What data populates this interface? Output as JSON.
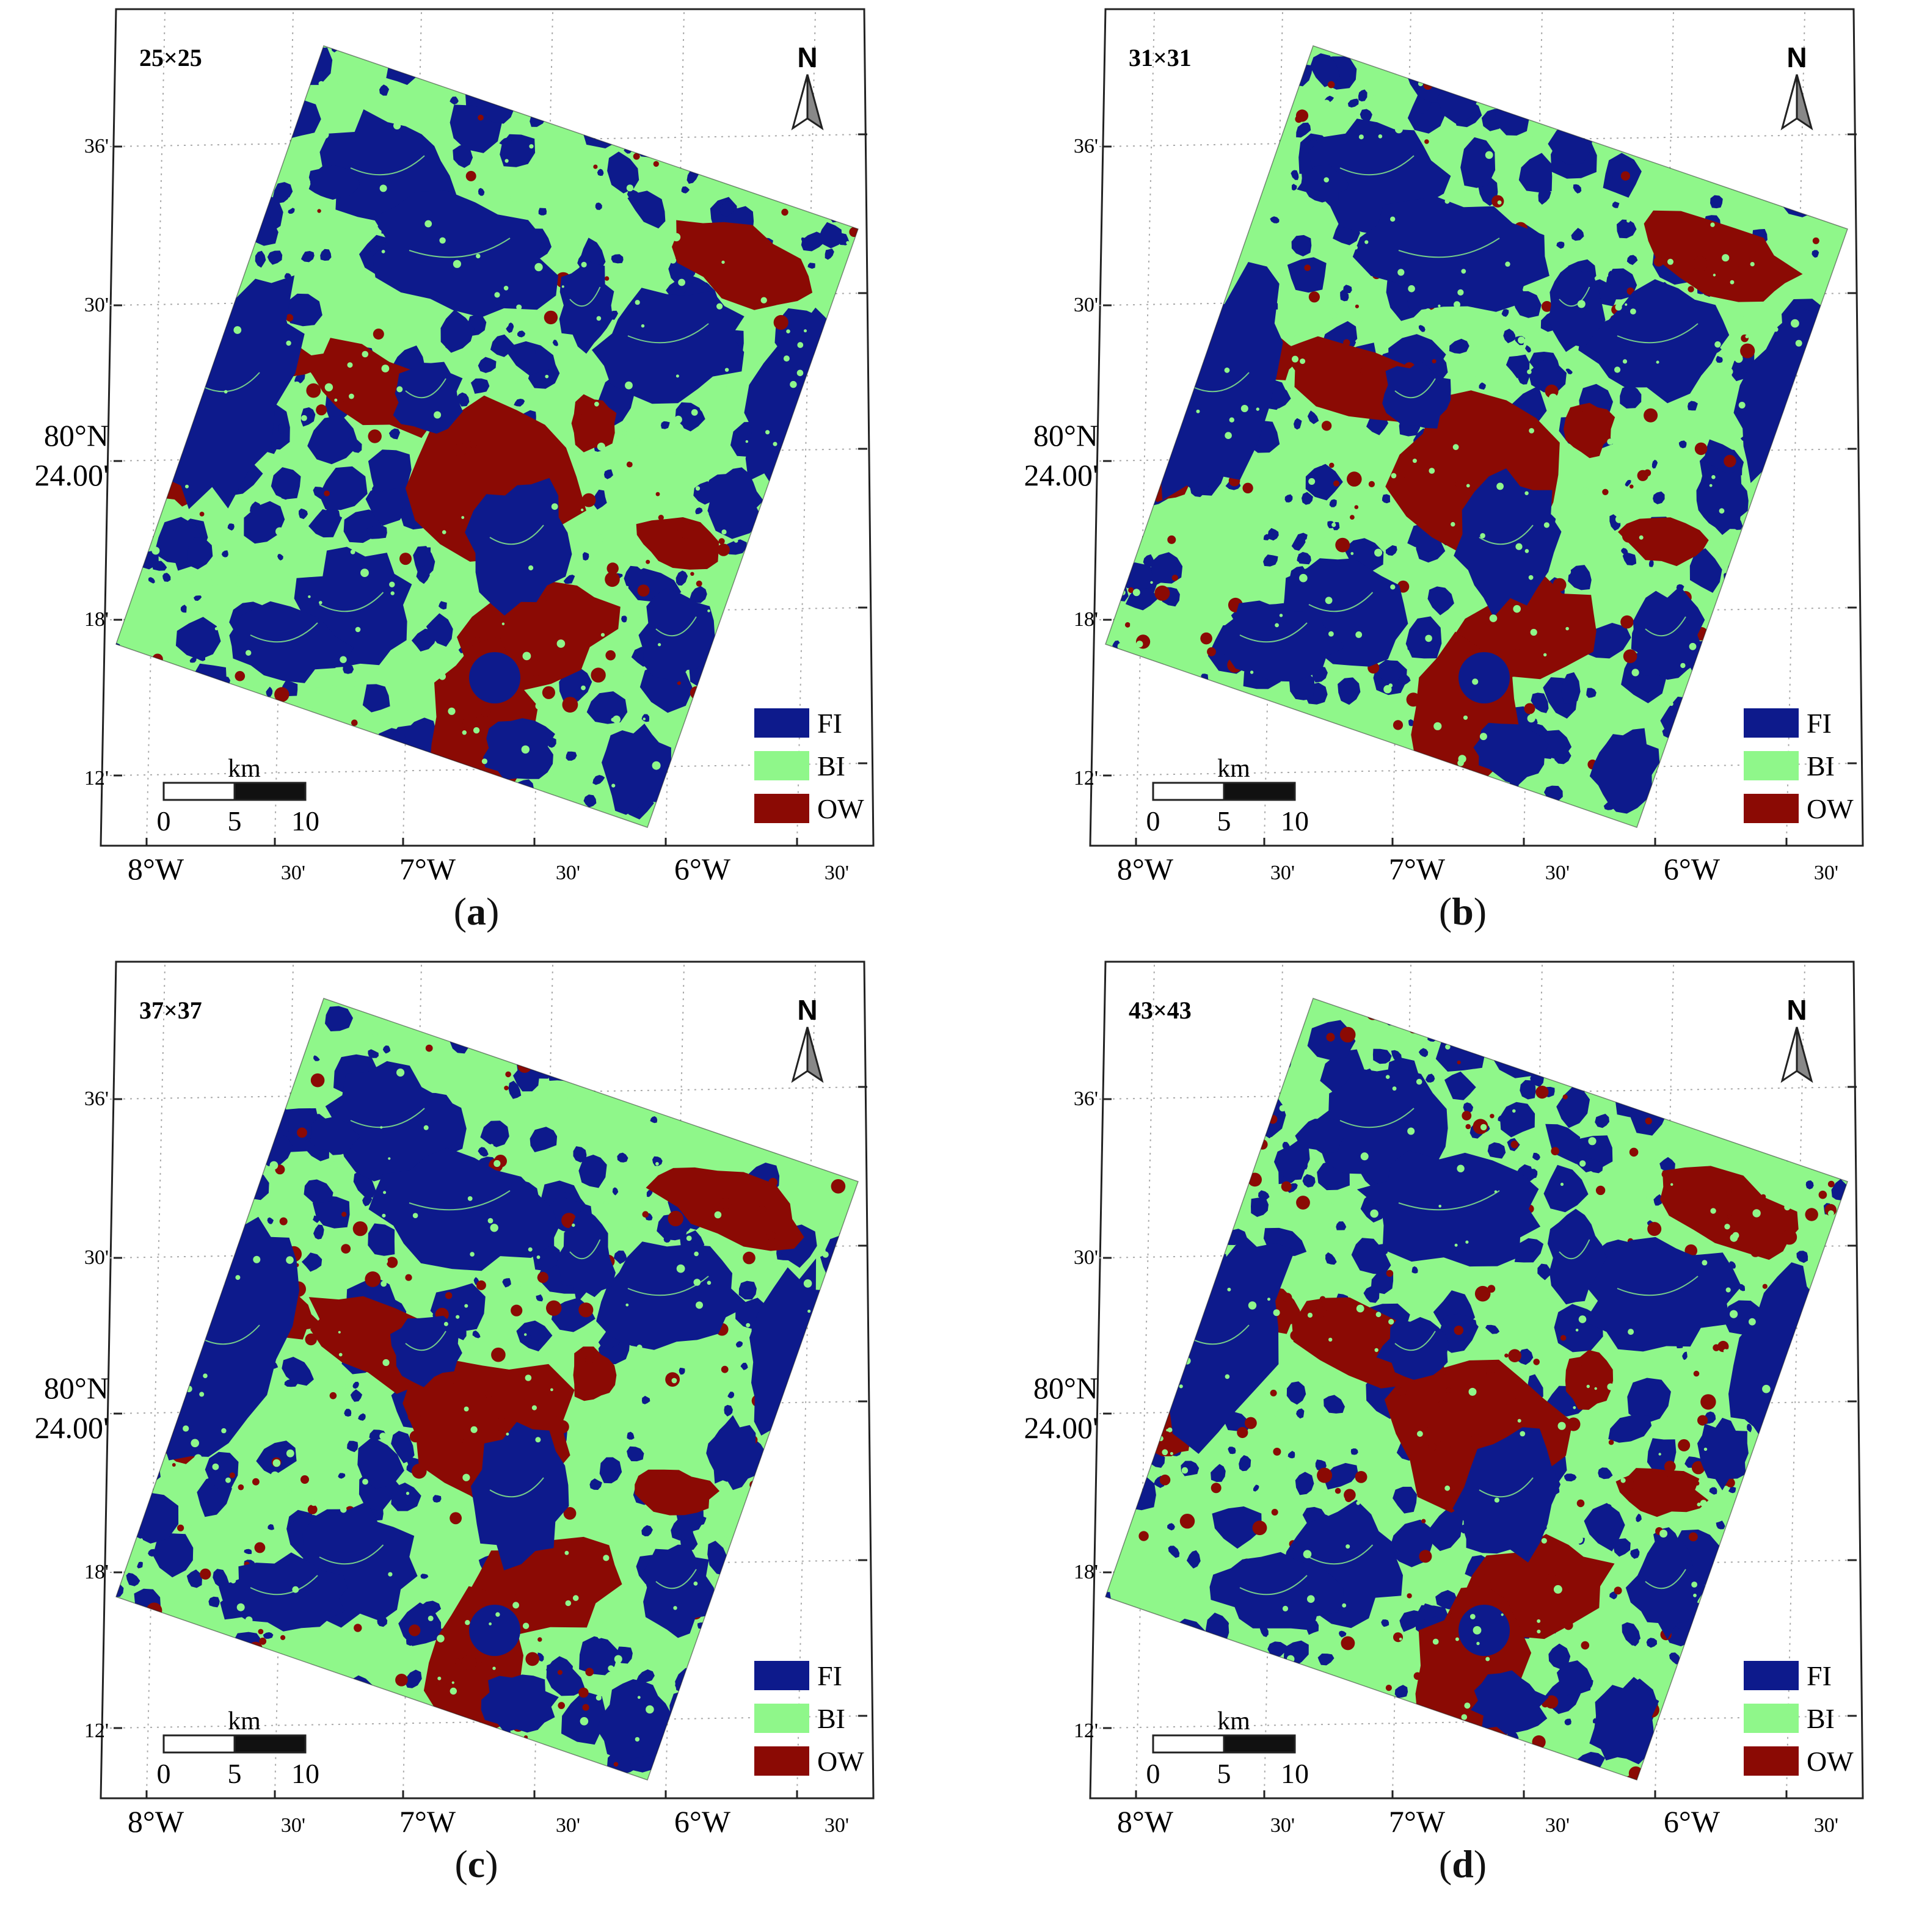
{
  "figure": {
    "panels": [
      {
        "id": "a",
        "window_label": "25×25",
        "caption_letter": "a",
        "lat_labels": [
          "36'",
          "30'",
          "80°N",
          "24.00'",
          "18'",
          "12'"
        ],
        "lon_labels": [
          "8°W",
          "30'",
          "7°W",
          "30'",
          "6°W",
          "30'"
        ]
      },
      {
        "id": "b",
        "window_label": "31×31",
        "caption_letter": "b",
        "lat_labels": [
          "36'",
          "30'",
          "80°N",
          "24.00'",
          "18'",
          "12'"
        ],
        "lon_labels": [
          "8°W",
          "30'",
          "7°W",
          "30'",
          "6°W",
          "30'"
        ]
      },
      {
        "id": "c",
        "window_label": "37×37",
        "caption_letter": "c",
        "lat_labels": [
          "36'",
          "30'",
          "80°N",
          "24.00'",
          "18'",
          "12'"
        ],
        "lon_labels": [
          "8°W",
          "30'",
          "7°W",
          "30'",
          "6°W",
          "30'"
        ]
      },
      {
        "id": "d",
        "window_label": "43×43",
        "caption_letter": "d",
        "lat_labels": [
          "36'",
          "30'",
          "80°N",
          "24.00'",
          "18'",
          "12'"
        ],
        "lon_labels": [
          "8°W",
          "30'",
          "7°W",
          "30'",
          "6°W",
          "30'"
        ]
      }
    ],
    "north_label": "N",
    "scalebar": {
      "unit": "km",
      "ticks": [
        "0",
        "5",
        "10"
      ]
    },
    "legend": [
      {
        "label": "FI",
        "color": "#0d1a8c"
      },
      {
        "label": "BI",
        "color": "#8ff78a"
      },
      {
        "label": "OW",
        "color": "#8b0a04"
      }
    ],
    "colors": {
      "fast_ice": "#0d1a8c",
      "broken_ice": "#8ff78a",
      "open_water": "#8b0a04"
    }
  }
}
